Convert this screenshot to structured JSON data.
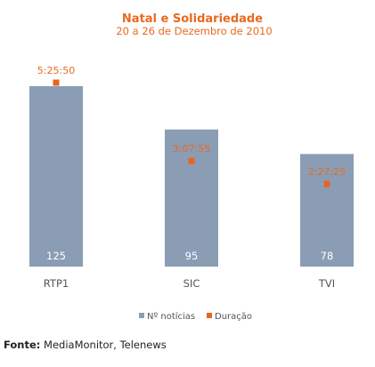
{
  "chart_data": {
    "type": "bar",
    "title": "Natal e Solidariedade",
    "subtitle": "20 a 26 de Dezembro de 2010",
    "categories": [
      "RTP1",
      "SIC",
      "TVI"
    ],
    "series": [
      {
        "name": "Nº notícias",
        "values": [
          125,
          95,
          78
        ],
        "color": "#8a9db5",
        "kind": "bar"
      },
      {
        "name": "Duração",
        "values": [
          "5:25:50",
          "3:07:55",
          "2:27:25"
        ],
        "color": "#e8661e",
        "kind": "marker"
      }
    ],
    "legend": "bottom",
    "grid": false
  },
  "source": {
    "label": "Fonte:",
    "text": " MediaMonitor, Telenews"
  }
}
